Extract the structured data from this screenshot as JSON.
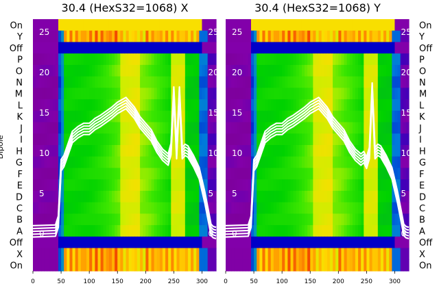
{
  "chart_data": [
    {
      "type": "heatmap",
      "title": "30.4 (HexS32=1068) X",
      "ylabel": "Dipole",
      "row_labels": [
        "On",
        "Y",
        "Off",
        "P",
        "O",
        "N",
        "M",
        "L",
        "K",
        "J",
        "I",
        "H",
        "G",
        "F",
        "E",
        "D",
        "C",
        "B",
        "A",
        "Off",
        "X",
        "On"
      ],
      "x_ticks": [
        0,
        50,
        100,
        150,
        200,
        250,
        300
      ],
      "xlim": [
        0,
        325
      ],
      "overlay": {
        "type": "line",
        "y_ticks": [
          0,
          5,
          10,
          15,
          20,
          25
        ],
        "ylim": [
          -4.6,
          26.6
        ],
        "x": [
          0,
          40,
          45,
          50,
          55,
          60,
          70,
          80,
          90,
          100,
          110,
          120,
          130,
          140,
          150,
          160,
          165,
          170,
          180,
          190,
          200,
          210,
          220,
          230,
          240,
          245,
          250,
          255,
          260,
          265,
          270,
          275,
          285,
          295,
          305,
          312,
          316,
          320,
          325
        ],
        "y": [
          0.3,
          0.4,
          1.5,
          8.5,
          9.0,
          10.0,
          12.0,
          12.6,
          13.0,
          13.0,
          13.6,
          14.0,
          14.5,
          15.0,
          15.6,
          16.0,
          16.2,
          15.8,
          15.0,
          13.8,
          13.0,
          12.2,
          10.8,
          9.8,
          9.2,
          10.5,
          17.5,
          10.0,
          17.5,
          10.0,
          10.4,
          10.2,
          9.0,
          7.5,
          4.5,
          2.0,
          0.5,
          0.2,
          0.1
        ]
      },
      "colorscale": "nipy_spectral"
    },
    {
      "type": "heatmap",
      "title": "30.4 (HexS32=1068) Y",
      "row_labels": [
        "On",
        "Y",
        "Off",
        "P",
        "O",
        "N",
        "M",
        "L",
        "K",
        "J",
        "I",
        "H",
        "G",
        "F",
        "E",
        "D",
        "C",
        "B",
        "A",
        "Off",
        "X",
        "On"
      ],
      "x_ticks": [
        0,
        50,
        100,
        150,
        200,
        250,
        300
      ],
      "xlim": [
        0,
        325
      ],
      "overlay": {
        "type": "line",
        "y_ticks": [
          0,
          5,
          10,
          15,
          20,
          25
        ],
        "ylim": [
          -4.6,
          26.6
        ],
        "x": [
          0,
          40,
          45,
          50,
          55,
          60,
          70,
          80,
          90,
          100,
          110,
          120,
          130,
          140,
          150,
          160,
          165,
          170,
          180,
          190,
          200,
          210,
          220,
          230,
          240,
          245,
          250,
          255,
          260,
          265,
          270,
          275,
          285,
          295,
          305,
          312,
          316,
          320,
          325
        ],
        "y": [
          0.3,
          0.4,
          1.5,
          8.5,
          9.0,
          10.0,
          12.0,
          12.6,
          13.0,
          13.0,
          13.6,
          14.0,
          14.5,
          15.0,
          15.6,
          16.0,
          16.2,
          15.8,
          15.0,
          13.8,
          13.0,
          12.2,
          10.8,
          9.8,
          9.2,
          9.5,
          8.8,
          10.0,
          18.0,
          10.0,
          10.4,
          10.2,
          9.0,
          7.5,
          4.5,
          2.0,
          0.5,
          0.2,
          0.1
        ]
      },
      "colorscale": "nipy_spectral"
    }
  ]
}
